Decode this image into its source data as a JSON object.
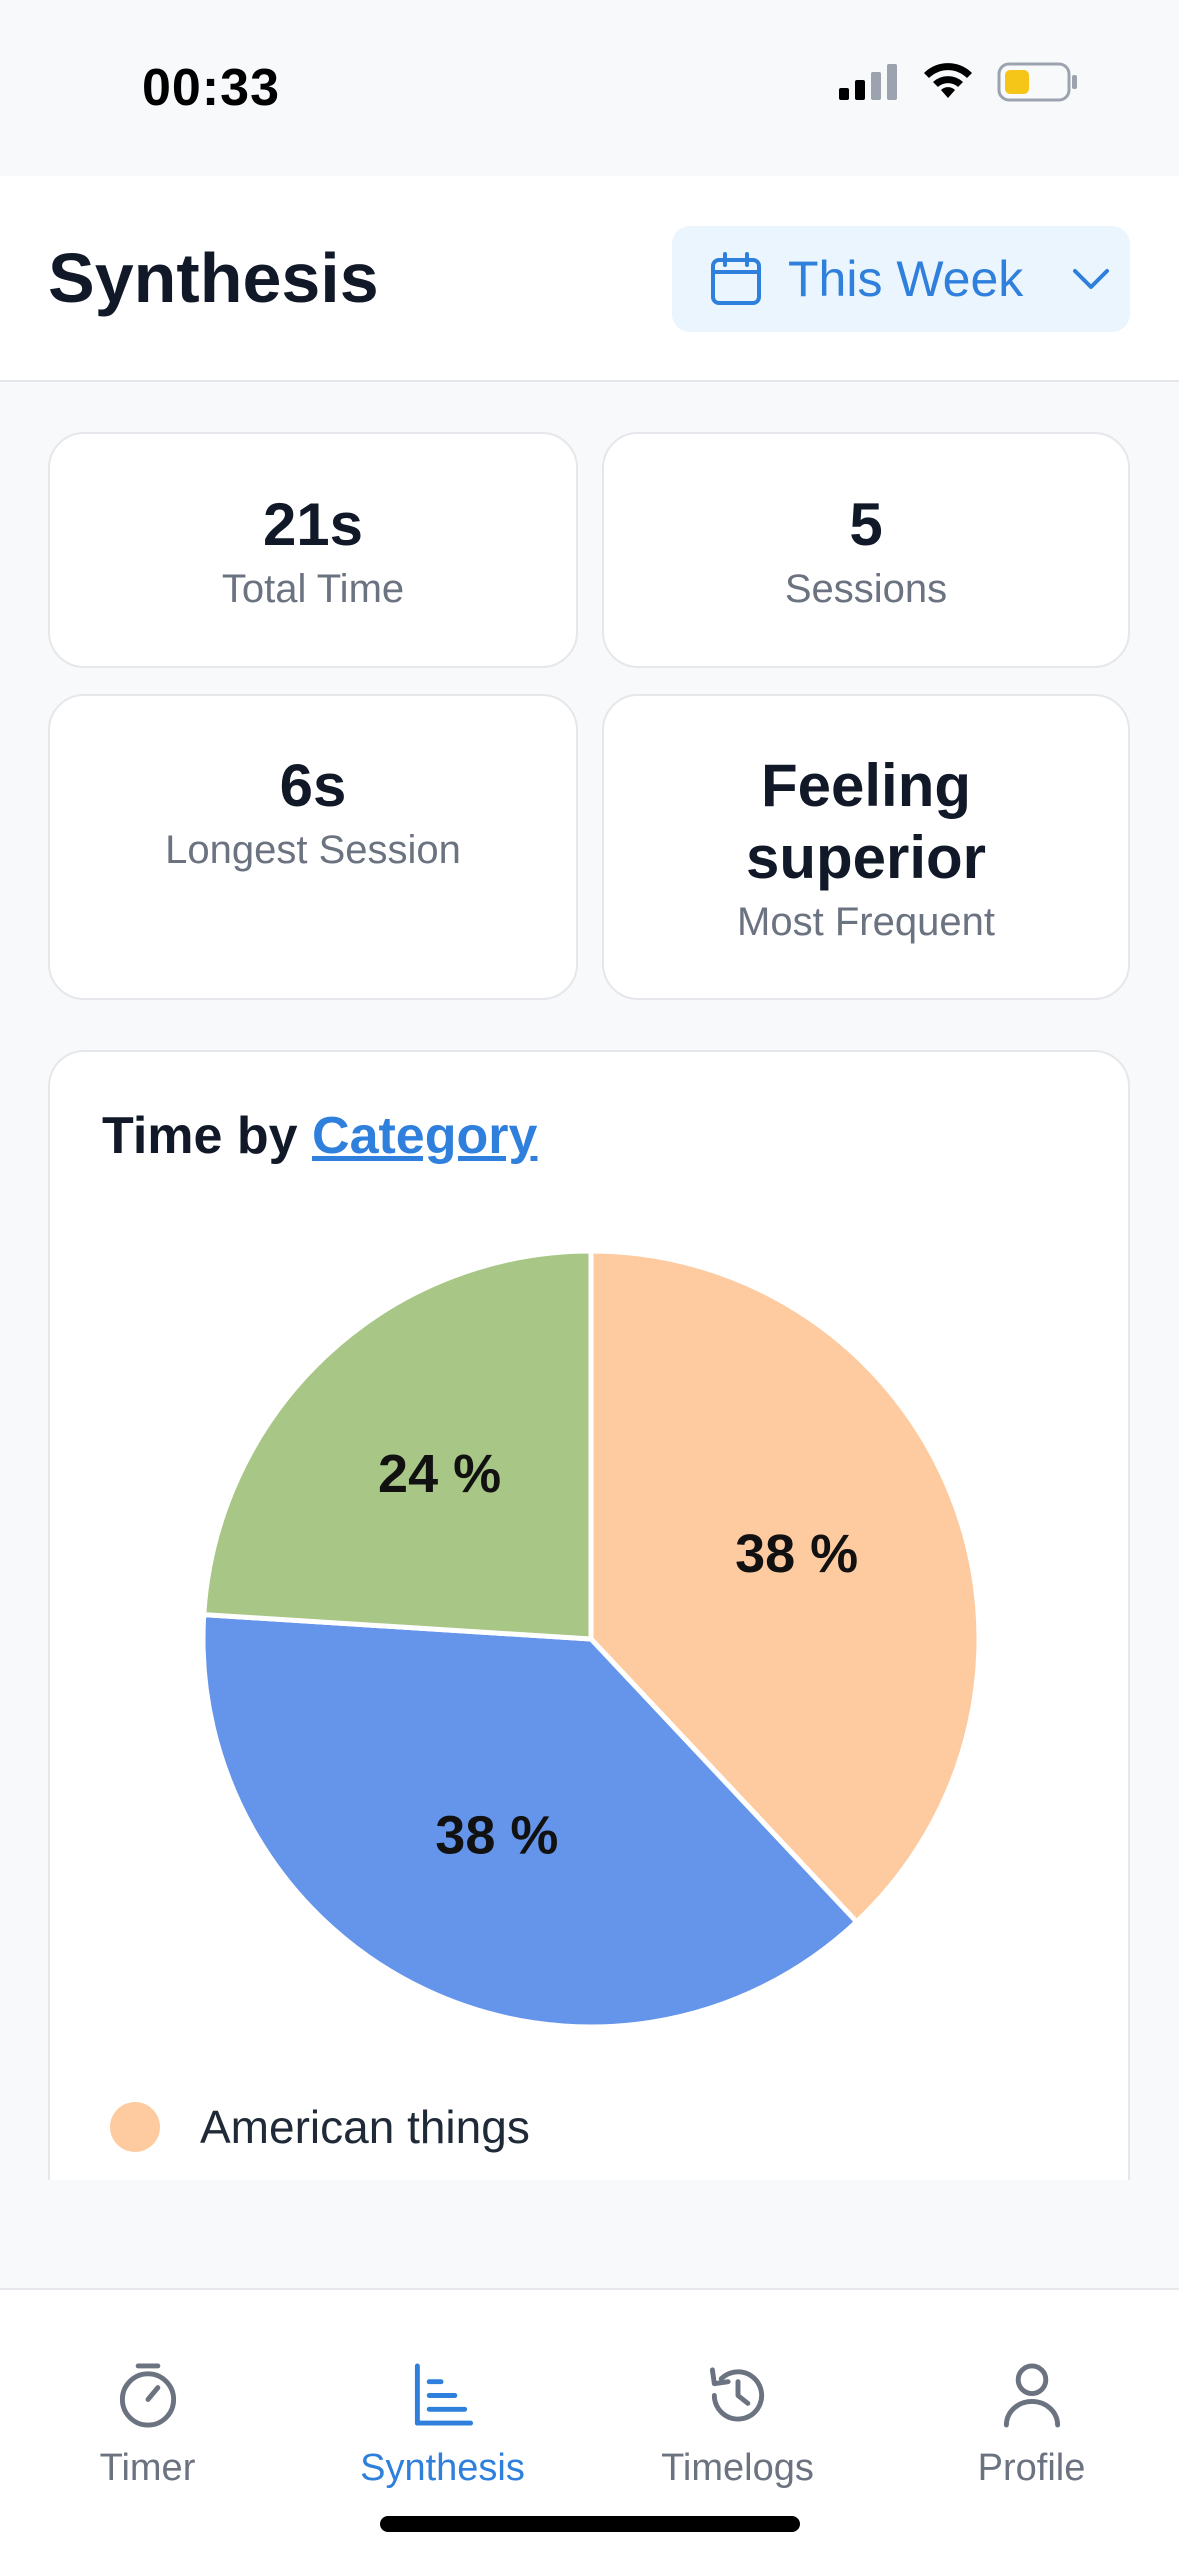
{
  "status_bar": {
    "time": "00:33",
    "battery_color": "#f5c518"
  },
  "header": {
    "title": "Synthesis",
    "period": {
      "label": "This Week",
      "icon": "calendar-icon"
    }
  },
  "stats": [
    {
      "value": "21s",
      "label": "Total Time"
    },
    {
      "value": "5",
      "label": "Sessions"
    },
    {
      "value": "6s",
      "label": "Longest Session"
    },
    {
      "value": "Feeling superior",
      "label": "Most Frequent"
    }
  ],
  "chart_card": {
    "title_prefix": "Time by",
    "title_link": "Category"
  },
  "chart_data": {
    "type": "pie",
    "slices": [
      {
        "name": "American things",
        "value": 38,
        "label": "38 %",
        "color": "#fecba1"
      },
      {
        "value": 38,
        "label": "38 %",
        "color": "#6595eb"
      },
      {
        "value": 24,
        "label": "24 %",
        "color": "#a8c686"
      }
    ],
    "legend": [
      "American things"
    ],
    "legend_placement": "bottom"
  },
  "tabs": [
    {
      "label": "Timer",
      "icon": "stopwatch-icon",
      "active": false
    },
    {
      "label": "Synthesis",
      "icon": "bar-chart-icon",
      "active": true
    },
    {
      "label": "Timelogs",
      "icon": "history-icon",
      "active": false
    },
    {
      "label": "Profile",
      "icon": "user-icon",
      "active": false
    }
  ],
  "colors": {
    "accent": "#2f7fdc",
    "inactive": "#6b7280"
  }
}
